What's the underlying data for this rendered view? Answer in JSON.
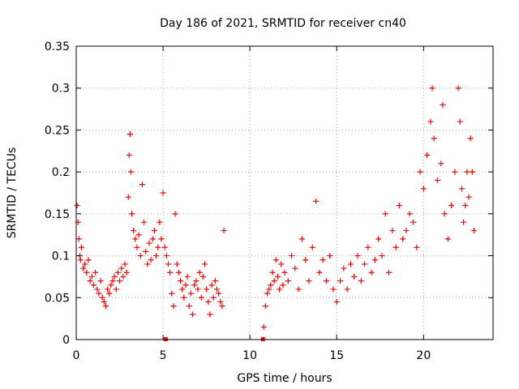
{
  "chart_data": {
    "type": "scatter",
    "title": "Day 186 of 2021, SRMTID for receiver cn40",
    "xlabel": "GPS time / hours",
    "ylabel": "SRMTID / TECUs",
    "xlim": [
      0,
      24
    ],
    "ylim": [
      0,
      0.35
    ],
    "xticks": [
      0,
      5,
      10,
      15,
      20
    ],
    "xtick_labels": [
      "0",
      "5",
      "10",
      "15",
      "20"
    ],
    "yticks": [
      0,
      0.05,
      0.1,
      0.15,
      0.2,
      0.25,
      0.3,
      0.35
    ],
    "ytick_labels": [
      "0",
      "0.05",
      "0.1",
      "0.15",
      "0.2",
      "0.25",
      "0.3",
      "0.35"
    ],
    "grid": true,
    "marker": "+",
    "color": "#ff0000",
    "series": [
      {
        "name": "SRMTID",
        "points": [
          [
            0.05,
            0.16
          ],
          [
            0.1,
            0.14
          ],
          [
            0.15,
            0.12
          ],
          [
            0.2,
            0.1
          ],
          [
            0.25,
            0.095
          ],
          [
            0.3,
            0.11
          ],
          [
            0.4,
            0.085
          ],
          [
            0.5,
            0.09
          ],
          [
            0.6,
            0.08
          ],
          [
            0.7,
            0.095
          ],
          [
            0.8,
            0.07
          ],
          [
            0.9,
            0.075
          ],
          [
            1.0,
            0.065
          ],
          [
            1.1,
            0.08
          ],
          [
            1.2,
            0.06
          ],
          [
            1.3,
            0.055
          ],
          [
            1.4,
            0.07
          ],
          [
            1.5,
            0.05
          ],
          [
            1.6,
            0.045
          ],
          [
            1.7,
            0.04
          ],
          [
            1.8,
            0.06
          ],
          [
            1.9,
            0.055
          ],
          [
            2.0,
            0.065
          ],
          [
            2.1,
            0.07
          ],
          [
            2.2,
            0.075
          ],
          [
            2.3,
            0.06
          ],
          [
            2.4,
            0.08
          ],
          [
            2.5,
            0.07
          ],
          [
            2.6,
            0.085
          ],
          [
            2.7,
            0.075
          ],
          [
            2.8,
            0.09
          ],
          [
            2.9,
            0.08
          ],
          [
            3.0,
            0.17
          ],
          [
            3.05,
            0.22
          ],
          [
            3.1,
            0.245
          ],
          [
            3.15,
            0.2
          ],
          [
            3.2,
            0.15
          ],
          [
            3.3,
            0.13
          ],
          [
            3.4,
            0.12
          ],
          [
            3.5,
            0.11
          ],
          [
            3.6,
            0.125
          ],
          [
            3.7,
            0.1
          ],
          [
            3.8,
            0.185
          ],
          [
            3.9,
            0.14
          ],
          [
            4.0,
            0.105
          ],
          [
            4.1,
            0.09
          ],
          [
            4.2,
            0.115
          ],
          [
            4.3,
            0.095
          ],
          [
            4.4,
            0.12
          ],
          [
            4.5,
            0.13
          ],
          [
            4.6,
            0.1
          ],
          [
            4.7,
            0.11
          ],
          [
            4.8,
            0.14
          ],
          [
            4.9,
            0.12
          ],
          [
            5.0,
            0.175
          ],
          [
            5.1,
            0.11
          ],
          [
            5.2,
            0.1
          ],
          [
            5.3,
            0.09
          ],
          [
            5.4,
            0.08
          ],
          [
            5.5,
            0.055
          ],
          [
            5.6,
            0.04
          ],
          [
            5.7,
            0.15
          ],
          [
            5.8,
            0.09
          ],
          [
            5.9,
            0.08
          ],
          [
            6.0,
            0.07
          ],
          [
            6.1,
            0.06
          ],
          [
            6.2,
            0.05
          ],
          [
            6.3,
            0.065
          ],
          [
            6.4,
            0.075
          ],
          [
            6.5,
            0.04
          ],
          [
            6.6,
            0.055
          ],
          [
            6.7,
            0.03
          ],
          [
            6.8,
            0.065
          ],
          [
            6.9,
            0.07
          ],
          [
            7.0,
            0.06
          ],
          [
            7.1,
            0.08
          ],
          [
            7.2,
            0.05
          ],
          [
            7.3,
            0.075
          ],
          [
            7.4,
            0.09
          ],
          [
            7.5,
            0.06
          ],
          [
            7.6,
            0.045
          ],
          [
            7.7,
            0.03
          ],
          [
            7.8,
            0.065
          ],
          [
            7.9,
            0.05
          ],
          [
            8.0,
            0.07
          ],
          [
            8.1,
            0.06
          ],
          [
            8.2,
            0.055
          ],
          [
            8.3,
            0.045
          ],
          [
            8.4,
            0.04
          ],
          [
            8.5,
            0.13
          ],
          [
            10.8,
            0.015
          ],
          [
            10.9,
            0.04
          ],
          [
            11.0,
            0.055
          ],
          [
            11.1,
            0.06
          ],
          [
            11.2,
            0.065
          ],
          [
            11.3,
            0.08
          ],
          [
            11.4,
            0.07
          ],
          [
            11.5,
            0.095
          ],
          [
            11.6,
            0.075
          ],
          [
            11.7,
            0.06
          ],
          [
            11.8,
            0.09
          ],
          [
            11.9,
            0.065
          ],
          [
            12.0,
            0.08
          ],
          [
            12.2,
            0.07
          ],
          [
            12.4,
            0.1
          ],
          [
            12.6,
            0.085
          ],
          [
            12.8,
            0.06
          ],
          [
            13.0,
            0.12
          ],
          [
            13.2,
            0.095
          ],
          [
            13.4,
            0.07
          ],
          [
            13.6,
            0.11
          ],
          [
            13.8,
            0.165
          ],
          [
            14.0,
            0.08
          ],
          [
            14.2,
            0.095
          ],
          [
            14.4,
            0.07
          ],
          [
            14.6,
            0.1
          ],
          [
            14.8,
            0.06
          ],
          [
            15.0,
            0.045
          ],
          [
            15.2,
            0.07
          ],
          [
            15.4,
            0.085
          ],
          [
            15.6,
            0.06
          ],
          [
            15.8,
            0.09
          ],
          [
            16.0,
            0.075
          ],
          [
            16.2,
            0.1
          ],
          [
            16.4,
            0.07
          ],
          [
            16.6,
            0.09
          ],
          [
            16.8,
            0.11
          ],
          [
            17.0,
            0.08
          ],
          [
            17.2,
            0.095
          ],
          [
            17.4,
            0.12
          ],
          [
            17.6,
            0.1
          ],
          [
            17.8,
            0.15
          ],
          [
            18.0,
            0.08
          ],
          [
            18.2,
            0.13
          ],
          [
            18.4,
            0.11
          ],
          [
            18.6,
            0.16
          ],
          [
            18.8,
            0.12
          ],
          [
            19.0,
            0.13
          ],
          [
            19.2,
            0.15
          ],
          [
            19.4,
            0.14
          ],
          [
            19.6,
            0.11
          ],
          [
            19.8,
            0.2
          ],
          [
            20.0,
            0.18
          ],
          [
            20.2,
            0.22
          ],
          [
            20.4,
            0.26
          ],
          [
            20.5,
            0.3
          ],
          [
            20.6,
            0.24
          ],
          [
            20.8,
            0.19
          ],
          [
            21.0,
            0.21
          ],
          [
            21.1,
            0.28
          ],
          [
            21.2,
            0.15
          ],
          [
            21.4,
            0.12
          ],
          [
            21.6,
            0.16
          ],
          [
            21.8,
            0.2
          ],
          [
            22.0,
            0.3
          ],
          [
            22.1,
            0.26
          ],
          [
            22.2,
            0.18
          ],
          [
            22.3,
            0.14
          ],
          [
            22.4,
            0.16
          ],
          [
            22.5,
            0.2
          ],
          [
            22.6,
            0.17
          ],
          [
            22.7,
            0.24
          ],
          [
            22.8,
            0.2
          ],
          [
            22.9,
            0.13
          ]
        ]
      }
    ],
    "zero_markers_x": [
      5.15,
      10.75
    ]
  }
}
